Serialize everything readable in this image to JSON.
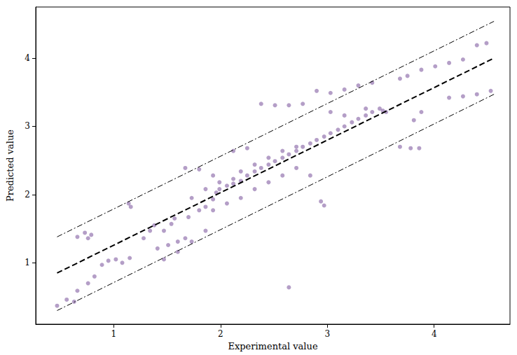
{
  "chart_data": {
    "type": "scatter",
    "x_label": "Experimental value",
    "y_label": "Predicted value",
    "xlim": [
      0.27,
      4.71
    ],
    "ylim": [
      0.1,
      4.75
    ],
    "xticks": [
      1,
      2,
      3,
      4
    ],
    "yticks": [
      1,
      2,
      3,
      4
    ],
    "grid": false,
    "series": [
      {
        "type": "scatter",
        "color": "#6a3d8f",
        "marker": "circle",
        "x": [
          0.47,
          0.56,
          0.63,
          0.66,
          0.73,
          0.76,
          0.79,
          0.66,
          0.76,
          0.82,
          0.89,
          0.95,
          1.02,
          1.08,
          1.15,
          1.14,
          1.16,
          1.28,
          1.34,
          1.38,
          1.47,
          1.54,
          1.57,
          1.41,
          1.51,
          1.6,
          1.67,
          1.7,
          1.8,
          1.86,
          1.93,
          1.96,
          1.99,
          2.06,
          2.12,
          2.19,
          2.25,
          2.32,
          2.38,
          2.45,
          2.51,
          2.58,
          2.64,
          2.71,
          2.77,
          2.84,
          2.9,
          2.97,
          3.03,
          3.1,
          3.16,
          3.23,
          3.29,
          3.36,
          3.42,
          3.49,
          3.55,
          1.93,
          2.06,
          2.19,
          2.32,
          2.45,
          2.58,
          2.71,
          2.84,
          2.12,
          2.25,
          2.19,
          2.32,
          2.45,
          2.58,
          2.71,
          2.38,
          2.51,
          2.64,
          2.77,
          2.9,
          3.03,
          3.16,
          3.29,
          3.42,
          2.94,
          2.97,
          2.64,
          3.03,
          3.16,
          3.36,
          3.52,
          3.68,
          3.75,
          3.88,
          4.01,
          4.14,
          4.27,
          4.4,
          4.49,
          4.14,
          4.27,
          4.4,
          4.53,
          3.68,
          3.78,
          3.86,
          3.81,
          3.88,
          1.86,
          1.73,
          1.6,
          1.47,
          1.67,
          1.8,
          1.93,
          1.73,
          1.86,
          1.99,
          2.12
        ],
        "values": [
          0.37,
          0.46,
          0.43,
          1.38,
          1.44,
          1.36,
          1.41,
          0.59,
          0.7,
          0.8,
          0.97,
          1.03,
          1.05,
          1.0,
          1.07,
          1.87,
          1.82,
          1.36,
          1.47,
          1.55,
          1.47,
          1.57,
          1.65,
          1.21,
          1.26,
          1.31,
          1.36,
          1.67,
          1.77,
          1.82,
          1.93,
          2.03,
          2.08,
          2.13,
          2.16,
          2.2,
          2.28,
          2.34,
          2.39,
          2.44,
          2.49,
          2.54,
          2.59,
          2.64,
          2.7,
          2.75,
          2.8,
          2.85,
          2.9,
          2.95,
          3.0,
          3.06,
          3.11,
          3.16,
          3.21,
          3.26,
          3.21,
          1.77,
          1.87,
          1.95,
          2.08,
          2.18,
          2.28,
          2.39,
          2.28,
          2.64,
          2.68,
          2.34,
          2.44,
          2.54,
          2.64,
          2.7,
          3.33,
          3.31,
          3.31,
          3.33,
          3.52,
          3.49,
          3.54,
          3.6,
          3.64,
          1.9,
          1.84,
          0.64,
          3.21,
          3.16,
          3.26,
          3.23,
          3.7,
          3.74,
          3.83,
          3.88,
          3.93,
          3.98,
          4.19,
          4.22,
          3.42,
          3.44,
          3.47,
          3.52,
          2.7,
          2.68,
          2.68,
          3.09,
          3.21,
          1.47,
          1.31,
          1.16,
          1.05,
          2.39,
          2.37,
          2.28,
          1.95,
          2.08,
          2.18,
          2.23
        ]
      },
      {
        "type": "line",
        "color": "#000000",
        "line_style": "dashed",
        "x": [
          0.47,
          4.56
        ],
        "values": [
          0.85,
          4.0
        ]
      },
      {
        "type": "line",
        "color": "#000000",
        "line_style": "dashdot",
        "x": [
          0.47,
          4.56
        ],
        "values": [
          1.38,
          4.54
        ]
      },
      {
        "type": "line",
        "color": "#000000",
        "line_style": "dashdot",
        "x": [
          0.47,
          4.56
        ],
        "values": [
          0.3,
          3.47
        ]
      }
    ]
  }
}
